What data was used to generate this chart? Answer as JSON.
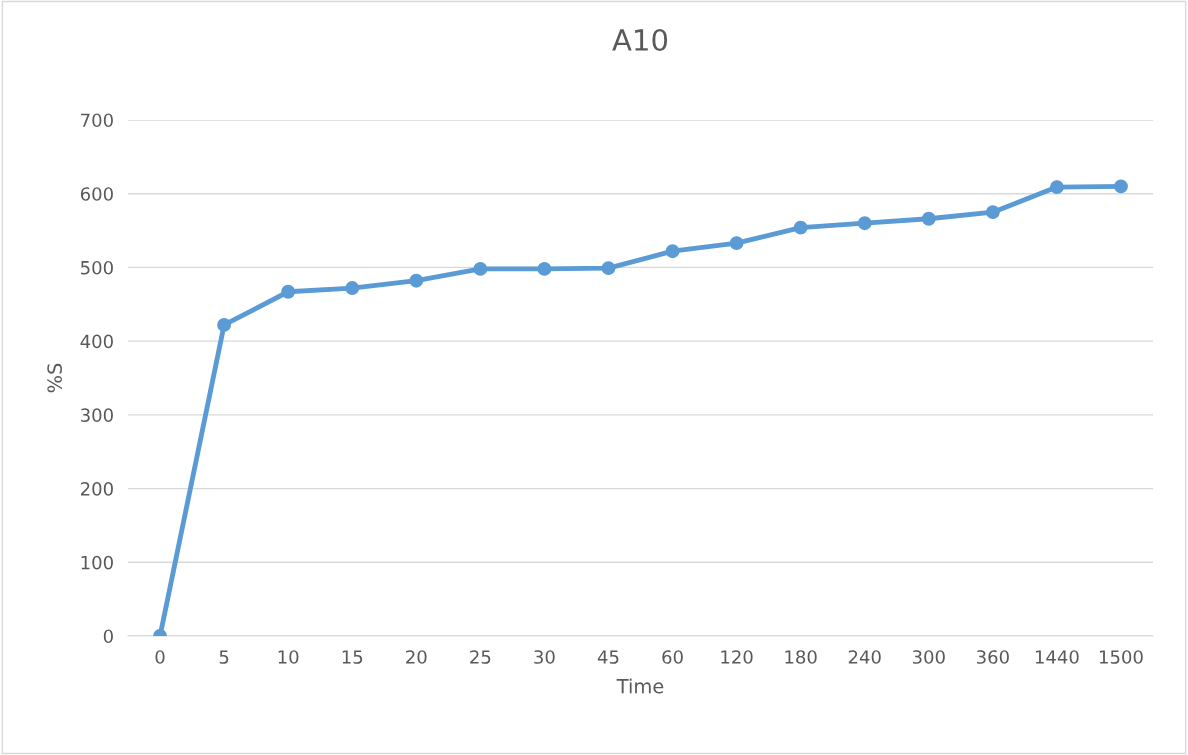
{
  "chart_data": {
    "type": "line",
    "title": "A10",
    "xlabel": "Time",
    "ylabel": "%S",
    "categories": [
      "0",
      "5",
      "10",
      "15",
      "20",
      "25",
      "30",
      "45",
      "60",
      "120",
      "180",
      "240",
      "300",
      "360",
      "1440",
      "1500"
    ],
    "series": [
      {
        "color": "#5b9bd5",
        "values": [
          0,
          422,
          467,
          472,
          482,
          498,
          498,
          499,
          522,
          533,
          554,
          560,
          566,
          575,
          609,
          610
        ]
      }
    ],
    "ylim": [
      0,
      700
    ],
    "yticks": [
      0,
      100,
      200,
      300,
      400,
      500,
      600,
      700
    ],
    "grid": "y",
    "marker": "circle",
    "line_style": "solid",
    "legend": false
  }
}
